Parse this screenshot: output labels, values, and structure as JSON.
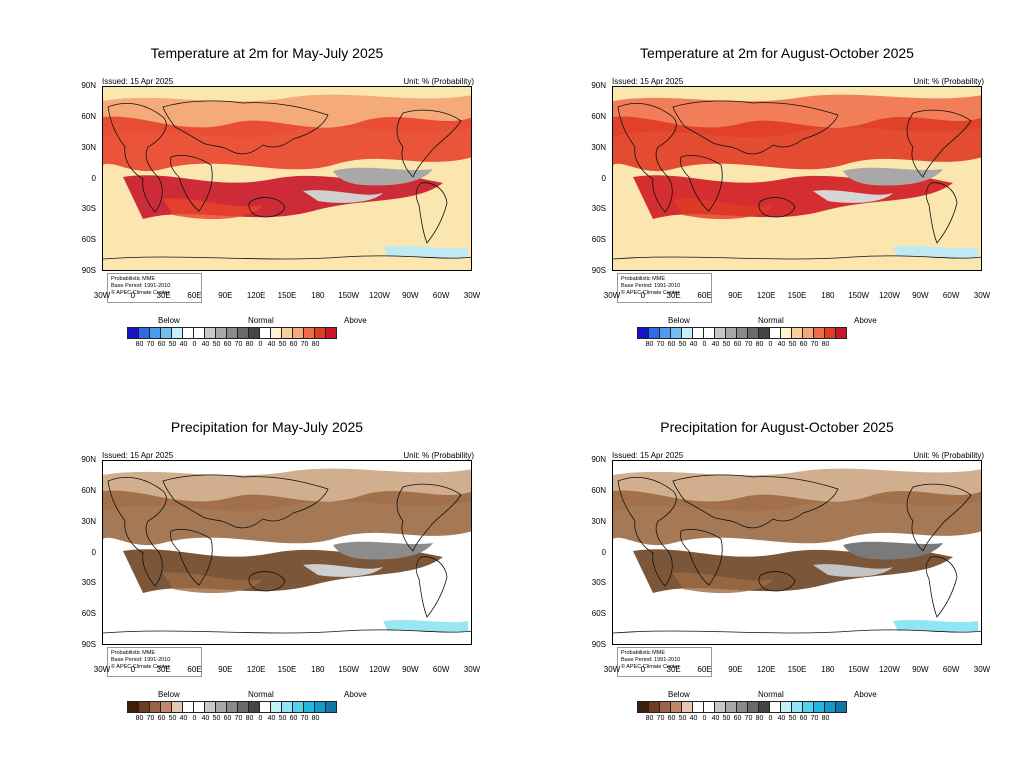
{
  "panels": [
    {
      "title": "Temperature at 2m for May-July 2025",
      "issued": "Issued: 15 Apr 2025",
      "unit": "Unit: % (Probability)",
      "legend": {
        "line1": "Probabilistic MME",
        "line2": "Base Period: 1991-2010",
        "line3": "© APEC Climate Center"
      },
      "colorbar": {
        "below": "Below",
        "normal": "Normal",
        "above": "Above"
      },
      "palette": {
        "bg": "#fbe6b0",
        "mid": "#f3a070",
        "strong": "#e8442c",
        "vstrong": "#c8162a",
        "neutral": "#a8a8a8",
        "neutral_light": "#d0d0d0",
        "cool": "#bfeaf4"
      },
      "colors": [
        "#1414c8",
        "#2d6be8",
        "#4d9bf0",
        "#6fc0f4",
        "#c4f0fa",
        "#ffffff",
        "#ffffff",
        "#c8c8c8",
        "#a8a8a8",
        "#8a8a8a",
        "#6a6a6a",
        "#454545",
        "#ffffff",
        "#fff2cc",
        "#f9cfa0",
        "#f7a77c",
        "#ee6a4a",
        "#e03b24",
        "#c8162a"
      ]
    },
    {
      "title": "Temperature at 2m for August-October 2025",
      "issued": "Issued: 15 Apr 2025",
      "unit": "Unit: % (Probability)",
      "legend": {
        "line1": "Probabilistic MME",
        "line2": "Base Period: 1991-2010",
        "line3": "© APEC Climate Center"
      },
      "colorbar": {
        "below": "Below",
        "normal": "Normal",
        "above": "Above"
      },
      "palette": {
        "bg": "#fbe6b0",
        "mid": "#ee6a4a",
        "strong": "#e03b24",
        "vstrong": "#d01a22",
        "neutral": "#a8a8a8",
        "neutral_light": "#d6d6d6",
        "cool": "#bfeaf4"
      },
      "colors": [
        "#1414c8",
        "#2d6be8",
        "#4d9bf0",
        "#6fc0f4",
        "#c4f0fa",
        "#ffffff",
        "#ffffff",
        "#c8c8c8",
        "#a8a8a8",
        "#8a8a8a",
        "#6a6a6a",
        "#454545",
        "#ffffff",
        "#fff2cc",
        "#f9cfa0",
        "#f7a77c",
        "#ee6a4a",
        "#e03b24",
        "#c8162a"
      ]
    },
    {
      "title": "Precipitation for May-July 2025",
      "issued": "Issued: 15 Apr 2025",
      "unit": "Unit: % (Probability)",
      "legend": {
        "line1": "Probabilistic MME",
        "line2": "Base Period: 1991-2010",
        "line3": "© APEC Climate Center"
      },
      "colorbar": {
        "below": "Below",
        "normal": "Normal",
        "above": "Above"
      },
      "palette": {
        "bg": "#ffffff",
        "mid": "#c9a07a",
        "strong": "#9c6a44",
        "vstrong": "#6e4424",
        "neutral": "#8c8c8c",
        "neutral_light": "#cfcfcf",
        "cool": "#9ae6f2"
      },
      "colors": [
        "#3c1e0a",
        "#6e3c1e",
        "#9c6444",
        "#c08866",
        "#e6c8b0",
        "#ffffff",
        "#ffffff",
        "#c8c8c8",
        "#a8a8a8",
        "#8a8a8a",
        "#6a6a6a",
        "#454545",
        "#ffffff",
        "#c4f0fa",
        "#8fe4f6",
        "#52d2ee",
        "#23b8e0",
        "#129ac8",
        "#0f78a8"
      ]
    },
    {
      "title": "Precipitation for August-October 2025",
      "issued": "Issued: 15 Apr 2025",
      "unit": "Unit: % (Probability)",
      "legend": {
        "line1": "Probabilistic MME",
        "line2": "Base Period: 1991-2010",
        "line3": "© APEC Climate Center"
      },
      "colorbar": {
        "below": "Below",
        "normal": "Normal",
        "above": "Above"
      },
      "palette": {
        "bg": "#ffffff",
        "mid": "#c9a07a",
        "strong": "#9c6a44",
        "vstrong": "#6e4424",
        "neutral": "#7a7a7a",
        "neutral_light": "#c4c4c4",
        "cool": "#8fe4f6"
      },
      "colors": [
        "#3c1e0a",
        "#6e3c1e",
        "#9c6444",
        "#c08866",
        "#e6c8b0",
        "#ffffff",
        "#ffffff",
        "#c8c8c8",
        "#a8a8a8",
        "#8a8a8a",
        "#6a6a6a",
        "#454545",
        "#ffffff",
        "#c4f0fa",
        "#8fe4f6",
        "#52d2ee",
        "#23b8e0",
        "#129ac8",
        "#0f78a8"
      ]
    }
  ],
  "lat_labels": [
    "90N",
    "60N",
    "30N",
    "0",
    "30S",
    "60S",
    "90S"
  ],
  "lon_labels": [
    "30W",
    "0",
    "30E",
    "60E",
    "90E",
    "120E",
    "150E",
    "180",
    "150W",
    "120W",
    "90W",
    "60W",
    "30W"
  ],
  "tick_values": [
    "80",
    "70",
    "60",
    "50",
    "40",
    "0",
    "40",
    "50",
    "60",
    "70",
    "80",
    "0",
    "40",
    "50",
    "60",
    "70",
    "80"
  ]
}
